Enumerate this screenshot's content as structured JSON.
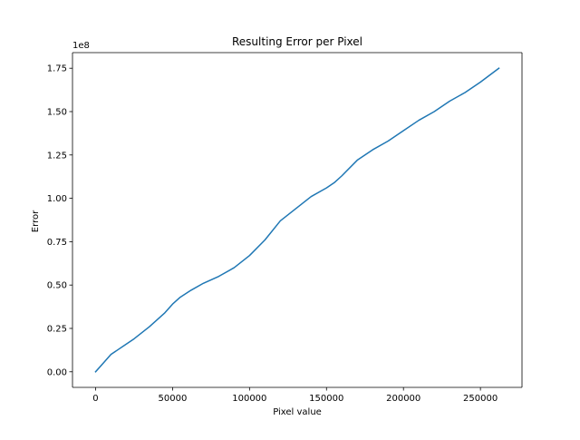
{
  "chart_data": {
    "type": "line",
    "title": "Resulting Error per Pixel",
    "xlabel": "Pixel value",
    "ylabel": "Error",
    "y_offset_label": "1e8",
    "xlim": [
      -15000,
      277000
    ],
    "ylim": [
      -0.09,
      1.84
    ],
    "x_ticks": [
      0,
      50000,
      100000,
      150000,
      200000,
      250000
    ],
    "x_tick_labels": [
      "0",
      "50000",
      "100000",
      "150000",
      "200000",
      "250000"
    ],
    "y_ticks": [
      0,
      0.25,
      0.5,
      0.75,
      1.0,
      1.25,
      1.5,
      1.75
    ],
    "y_tick_labels": [
      "0.00",
      "0.25",
      "0.50",
      "0.75",
      "1.00",
      "1.25",
      "1.50",
      "1.75"
    ],
    "grid": false,
    "series": [
      {
        "color": "#1f77b4",
        "x": [
          0,
          5000,
          10000,
          15000,
          25000,
          35000,
          45000,
          50000,
          55000,
          62000,
          70000,
          80000,
          90000,
          100000,
          110000,
          120000,
          130000,
          140000,
          150000,
          155000,
          160000,
          170000,
          180000,
          190000,
          200000,
          210000,
          220000,
          230000,
          240000,
          250000,
          262000
        ],
        "y": [
          0.0,
          0.05,
          0.1,
          0.13,
          0.19,
          0.26,
          0.34,
          0.39,
          0.43,
          0.47,
          0.51,
          0.55,
          0.6,
          0.67,
          0.76,
          0.87,
          0.94,
          1.01,
          1.06,
          1.09,
          1.13,
          1.22,
          1.28,
          1.33,
          1.39,
          1.45,
          1.5,
          1.56,
          1.61,
          1.67,
          1.75
        ]
      }
    ]
  }
}
